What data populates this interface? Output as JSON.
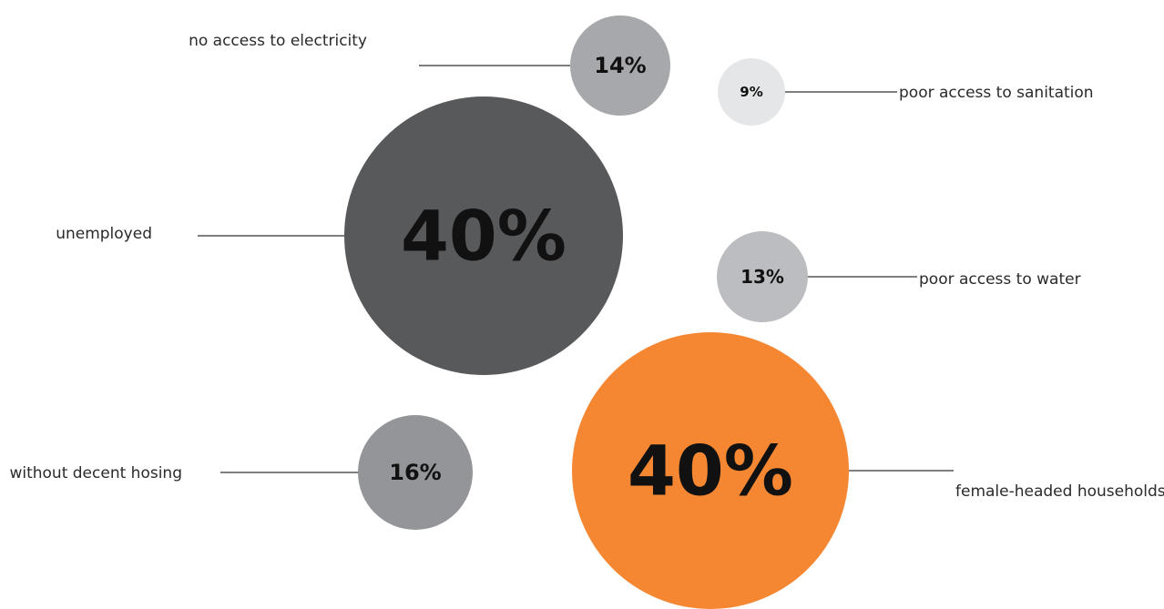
{
  "chart_data": {
    "type": "bubble",
    "unit": "%",
    "bubbles": [
      {
        "label": "no access to electricity",
        "value": 14,
        "display": "14%",
        "color": "#a7a8ab"
      },
      {
        "label": "poor access to sanitation",
        "value": 9,
        "display": "9%",
        "color": "#e5e6e7"
      },
      {
        "label": "unemployed",
        "value": 40,
        "display": "40%",
        "color": "#58595b"
      },
      {
        "label": "poor access to water",
        "value": 13,
        "display": "13%",
        "color": "#bcbdc0"
      },
      {
        "label": "without decent hosing",
        "value": 16,
        "display": "16%",
        "color": "#939598"
      },
      {
        "label": "female-headed households",
        "value": 40,
        "display": "40%",
        "color": "#f58733"
      }
    ]
  }
}
